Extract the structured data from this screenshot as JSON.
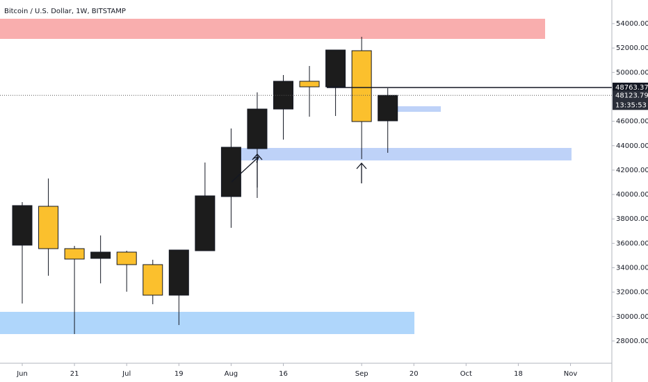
{
  "chart_data": {
    "type": "candlestick",
    "title": "Bitcoin / U.S. Dollar, 1W, BITSTAMP",
    "series": [
      {
        "up_color": "#1c1c1c",
        "down_color": "#fbc02d",
        "open": [
          35850,
          39035,
          35565,
          34768,
          35281,
          34256,
          31753,
          35395,
          39832,
          43759,
          47002,
          49277,
          48822,
          51781,
          46035
        ],
        "high": [
          39377,
          41311,
          35792,
          36646,
          35395,
          34654,
          35452,
          42620,
          45408,
          48366,
          49789,
          50529,
          51838,
          52919,
          48708
        ],
        "low": [
          31070,
          33346,
          28567,
          32720,
          32038,
          31013,
          29307,
          35395,
          37273,
          39718,
          44498,
          46376,
          46433,
          42906,
          43417
        ],
        "close": [
          39092,
          35565,
          34711,
          35281,
          34256,
          31753,
          35452,
          39889,
          43872,
          47002,
          49277,
          48822,
          51838,
          45977,
          48123.79
        ]
      }
    ],
    "zones": [
      {
        "low": 52748,
        "high": 54398,
        "color": "#f8a5a5"
      },
      {
        "low": 42791,
        "high": 43815,
        "color": "#b7cdf7"
      },
      {
        "low": 28567,
        "high": 30387,
        "color": "#a6d1fb"
      },
      {
        "low": 46775,
        "high": 47230,
        "color": "#b7cdf7"
      }
    ],
    "level_line": {
      "value": 48763.37,
      "label": "48763.37"
    },
    "last_price": {
      "value": 48123.79,
      "label": "48123.79"
    },
    "countdown": "13:35:53",
    "ylim": [
      26176,
      55935
    ],
    "yticks": [
      {
        "value": 54000,
        "label": "54000.00"
      },
      {
        "value": 52000,
        "label": "52000.00"
      },
      {
        "value": 50000,
        "label": "50000.00"
      },
      {
        "value": 46000,
        "label": "46000.00"
      },
      {
        "value": 44000,
        "label": "44000.00"
      },
      {
        "value": 42000,
        "label": "42000.00"
      },
      {
        "value": 40000,
        "label": "40000.00"
      },
      {
        "value": 38000,
        "label": "38000.00"
      },
      {
        "value": 36000,
        "label": "36000.00"
      },
      {
        "value": 34000,
        "label": "34000.00"
      },
      {
        "value": 32000,
        "label": "32000.00"
      },
      {
        "value": 30000,
        "label": "30000.00"
      },
      {
        "value": 28000,
        "label": "28000.00"
      }
    ],
    "xticks": [
      {
        "value": 0,
        "label": "Jun"
      },
      {
        "value": 2,
        "label": "21"
      },
      {
        "value": 4,
        "label": "Jul"
      },
      {
        "value": 6,
        "label": "19"
      },
      {
        "value": 8,
        "label": "Aug"
      },
      {
        "value": 10,
        "label": "16"
      },
      {
        "value": 13,
        "label": "Sep"
      },
      {
        "value": 15,
        "label": "20"
      },
      {
        "value": 17,
        "label": "Oct"
      },
      {
        "value": 19,
        "label": "18"
      },
      {
        "value": 21,
        "label": "Nov"
      }
    ]
  }
}
